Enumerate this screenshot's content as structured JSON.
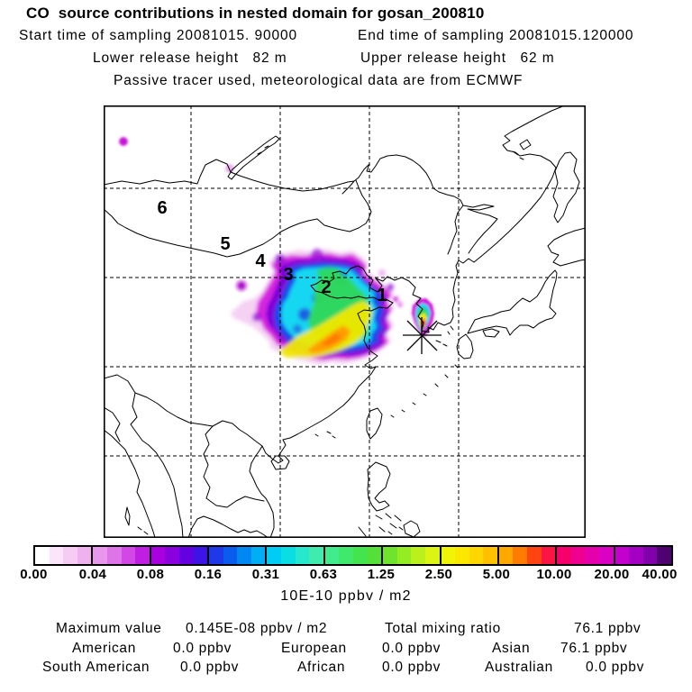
{
  "header": {
    "title": "CO  source contributions in nested domain for gosan_200810",
    "start_time": "Start time of sampling 20081015. 90000",
    "end_time": "End time of sampling 20081015.120000",
    "lower_release": "Lower release height   82 m",
    "upper_release": "Upper release height   62 m",
    "tracer_note": "Passive tracer used, meteorological data are from ECMWF"
  },
  "map": {
    "trajectory_labels": [
      {
        "label": "6"
      },
      {
        "label": "5"
      },
      {
        "label": "4"
      },
      {
        "label": "3"
      },
      {
        "label": "2"
      },
      {
        "label": "1"
      }
    ],
    "site_marker": "gosan-star"
  },
  "colorbar": {
    "tick_labels": [
      "0.00",
      "0.04",
      "0.08",
      "0.16",
      "0.31",
      "0.63",
      "1.25",
      "2.50",
      "5.00",
      "10.00",
      "20.00",
      "40.00"
    ],
    "units_label": "10E-10 ppbv / m2",
    "segments": [
      [
        "#FFFFFF",
        "#FCE4FA",
        "#F7CCF4",
        "#F0B2EE"
      ],
      [
        "#E898EC",
        "#DE74E8",
        "#D148E6",
        "#C01EE2"
      ],
      [
        "#A800DE",
        "#8A00DE",
        "#6400E2",
        "#3C14E6"
      ],
      [
        "#1E38EA",
        "#0A5CEE",
        "#0088F2",
        "#00AEF6"
      ],
      [
        "#00CCF4",
        "#0ADEE4",
        "#26E8CC",
        "#3EECAE"
      ],
      [
        "#40EC8C",
        "#40E86C",
        "#44E44E",
        "#54E038"
      ],
      [
        "#70E42C",
        "#94EC24",
        "#BAF01C",
        "#DCF414"
      ],
      [
        "#F0F408",
        "#FAE800",
        "#FFD600",
        "#FFC000"
      ],
      [
        "#FFA800",
        "#FF7C00",
        "#FF4410",
        "#FC1444"
      ],
      [
        "#F8006C",
        "#F00090",
        "#E600AC",
        "#DA00C4"
      ],
      [
        "#C400CE",
        "#A400C4",
        "#8000AC",
        "#500070"
      ]
    ]
  },
  "stats": {
    "max_label": "Maximum value",
    "max_value": "0.145E-08 ppbv / m2",
    "total_label": "Total mixing ratio",
    "total_value": "76.1 ppbv",
    "regions": [
      {
        "name": "American",
        "value": "0.0 ppbv"
      },
      {
        "name": "European",
        "value": "0.0 ppbv"
      },
      {
        "name": "Asian",
        "value": "76.1 ppbv"
      },
      {
        "name": "South American",
        "value": "0.0 ppbv"
      },
      {
        "name": "African",
        "value": "0.0 ppbv"
      },
      {
        "name": "Australian",
        "value": "0.0 ppbv"
      }
    ]
  },
  "chart_data": {
    "type": "heatmap",
    "title": "CO source contributions in nested domain for gosan_200810",
    "region": "East Asia map with dashed unlabeled graticule",
    "colorbar": {
      "units": "10E-10 ppbv / m2",
      "boundaries": [
        0.0,
        0.04,
        0.08,
        0.16,
        0.31,
        0.63,
        1.25,
        2.5,
        5.0,
        10.0,
        20.0,
        40.0
      ]
    },
    "sampling": {
      "start": "20081015. 90000",
      "end": "20081015.120000",
      "lower_release_height_m": 82,
      "upper_release_height_m": 62,
      "tracer": "Passive tracer used, meteorological data are from ECMWF"
    },
    "maximum_value": "0.145E-08 ppbv / m2",
    "total_mixing_ratio_ppbv": 76.1,
    "source_contributions_ppbv": {
      "American": 0.0,
      "European": 0.0,
      "Asian": 76.1,
      "South American": 0.0,
      "African": 0.0,
      "Australian": 0.0
    },
    "trajectory_markers": [
      "1",
      "2",
      "3",
      "4",
      "5",
      "6"
    ],
    "receptor_site": "gosan (star marker near Jeju)",
    "plume_description": "Main source-contribution plume over eastern China (magenta rim, cyan/green body, yellow-orange core ~2.5-10 units) plus small intense plume ending at the Gosan star marker; scattered faint magenta cells over Siberia/Mongolia"
  }
}
